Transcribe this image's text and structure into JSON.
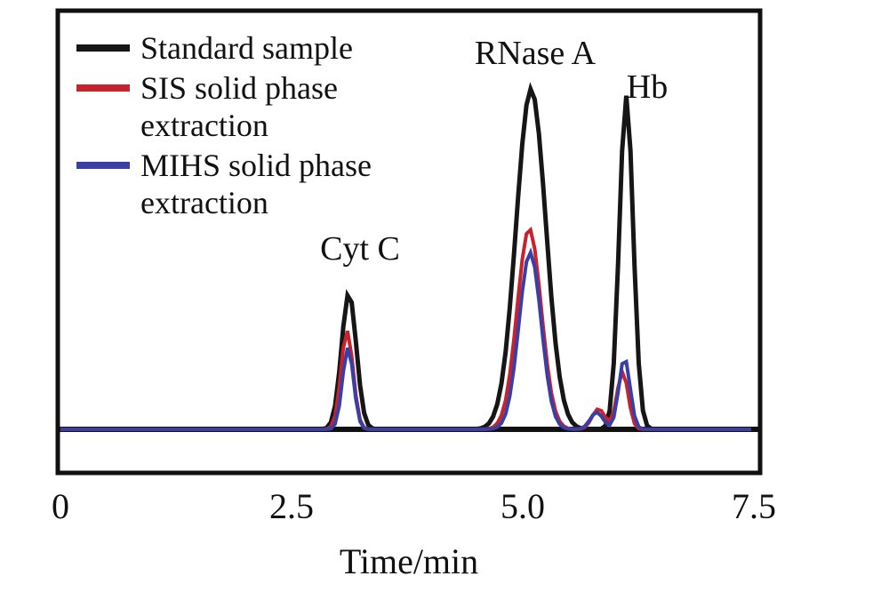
{
  "chart_data": {
    "type": "line",
    "title": "",
    "xlabel": "Time/min",
    "ylabel": "",
    "xlim": [
      0,
      7.5
    ],
    "ylim": [
      0,
      123
    ],
    "x_ticks": [
      0,
      2.5,
      5.0,
      7.5
    ],
    "x_tick_labels": [
      "0",
      "2.5",
      "5.0",
      "7.5"
    ],
    "grid": false,
    "legend_position": "top-left-inside",
    "peak_annotations": [
      {
        "label": "Cyt C",
        "x": 3.1
      },
      {
        "label": "RNase A",
        "x": 5.1
      },
      {
        "label": "Hb",
        "x": 6.1
      }
    ],
    "series": [
      {
        "name": "Standard sample",
        "color": "#161616",
        "stroke_width": 5,
        "peaks": [
          {
            "center": 3.12,
            "height": 40,
            "sigma": 0.08
          },
          {
            "center": 5.09,
            "height": 100,
            "sigma": 0.16
          },
          {
            "center": 6.12,
            "height": 98,
            "sigma": 0.075
          }
        ]
      },
      {
        "name": "SIS solid phase extraction",
        "color": "#c8232c",
        "stroke_width": 4,
        "peaks": [
          {
            "center": 3.1,
            "height": 29,
            "sigma": 0.065
          },
          {
            "center": 5.07,
            "height": 59,
            "sigma": 0.13
          },
          {
            "center": 5.82,
            "height": 6,
            "sigma": 0.07
          },
          {
            "center": 6.08,
            "height": 17,
            "sigma": 0.06
          }
        ]
      },
      {
        "name": "MIHS solid phase extraction",
        "color": "#3a3fa8",
        "stroke_width": 4,
        "peaks": [
          {
            "center": 3.11,
            "height": 24,
            "sigma": 0.06
          },
          {
            "center": 5.08,
            "height": 52,
            "sigma": 0.12
          },
          {
            "center": 5.8,
            "height": 5,
            "sigma": 0.07
          },
          {
            "center": 6.1,
            "height": 21,
            "sigma": 0.06
          }
        ]
      }
    ]
  }
}
